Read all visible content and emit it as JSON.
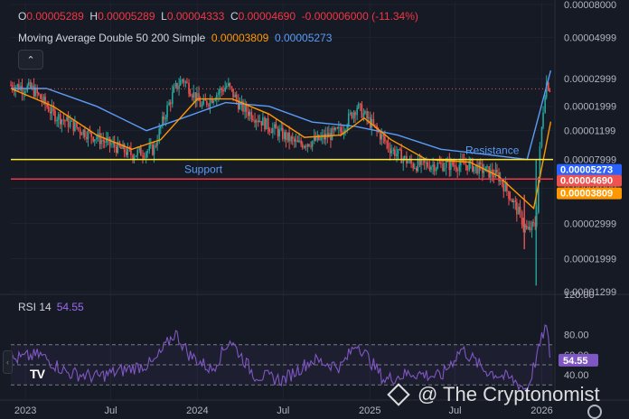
{
  "ohlc": {
    "o_label": "O",
    "o_value": "0.00005289",
    "h_label": "H",
    "h_value": "0.00005289",
    "l_label": "L",
    "l_value": "0.00004333",
    "c_label": "C",
    "c_value": "0.00004690",
    "change": "-0.000006000 (-11.34%)"
  },
  "ma_legend": {
    "title": "Moving Average Double 50 200 Simple",
    "fast": "0.00003809",
    "slow": "0.00005273"
  },
  "rsi_legend": {
    "title": "RSI 14",
    "value": "54.55"
  },
  "watermark": "@ The Cryptonomist",
  "colors": {
    "up": "#26a69a",
    "down": "#ef5350",
    "ma_fast": "#ff9800",
    "ma_slow": "#5b9cf6",
    "rsi": "#7e57c2",
    "resistance": "#ffeb3b",
    "support": "#f23645",
    "price": "#ef5350"
  },
  "icons": {
    "collapse": "chevron-up-icon",
    "logo": "tradingview-logo",
    "settings": "gear-icon",
    "watermark": "binance-diamond-icon"
  },
  "chart_data": {
    "type": "candlestick",
    "price_scale": "log",
    "ylim": [
      1.299e-05,
      8e-05
    ],
    "price_axis_labels": [
      "0.00008000",
      "0.00004999",
      "0.00002999",
      "0.00001999",
      "0.00001199",
      "0.00007999",
      "0.00004999",
      "0.00002999",
      "0.00001999",
      "0.00001299"
    ],
    "price_ticks": [
      8e-05,
      6.5e-05,
      5e-05,
      4.2e-05,
      3.6e-05,
      3e-05,
      2.5e-05,
      2e-05,
      1.6e-05,
      1.3e-05
    ],
    "x_labels": [
      "2023",
      "Jul",
      "2024",
      "Jul",
      "2025",
      "Jul",
      "2026"
    ],
    "x_label_dates": [
      "2023-01-01",
      "2023-07-01",
      "2024-01-01",
      "2024-07-01",
      "2025-01-01",
      "2025-07-01",
      "2026-01-01"
    ],
    "x_range": [
      "2022-12-01",
      "2026-01-25"
    ],
    "price_path": [
      [
        "2022-12-01",
        4.8e-05
      ],
      [
        "2023-01-15",
        4.7e-05
      ],
      [
        "2023-03-01",
        4e-05
      ],
      [
        "2023-05-01",
        3.6e-05
      ],
      [
        "2023-07-01",
        3.3e-05
      ],
      [
        "2023-08-15",
        3.1e-05
      ],
      [
        "2023-10-01",
        3.2e-05
      ],
      [
        "2023-11-15",
        4.7e-05
      ],
      [
        "2023-12-01",
        5e-05
      ],
      [
        "2024-01-10",
        4.2e-05
      ],
      [
        "2024-03-05",
        4.8e-05
      ],
      [
        "2024-04-01",
        4.2e-05
      ],
      [
        "2024-06-01",
        3.7e-05
      ],
      [
        "2024-08-01",
        3.3e-05
      ],
      [
        "2024-09-15",
        3.4e-05
      ],
      [
        "2024-11-01",
        3.6e-05
      ],
      [
        "2024-12-05",
        4.2e-05
      ],
      [
        "2025-01-01",
        3.8e-05
      ],
      [
        "2025-02-15",
        3.2e-05
      ],
      [
        "2025-04-01",
        2.9e-05
      ],
      [
        "2025-06-01",
        2.9e-05
      ],
      [
        "2025-08-01",
        2.9e-05
      ],
      [
        "2025-10-01",
        2.7e-05
      ],
      [
        "2025-11-01",
        2.3e-05
      ],
      [
        "2025-12-01",
        1.9e-05
      ],
      [
        "2025-12-20",
        2e-05
      ],
      [
        "2026-01-10",
        4.9e-05
      ],
      [
        "2026-01-20",
        4.69e-05
      ]
    ],
    "ma_fast_path": [
      [
        "2022-12-01",
        4.7e-05
      ],
      [
        "2023-03-01",
        4.2e-05
      ],
      [
        "2023-06-01",
        3.5e-05
      ],
      [
        "2023-08-15",
        3.2e-05
      ],
      [
        "2023-10-15",
        3.4e-05
      ],
      [
        "2024-01-01",
        4.4e-05
      ],
      [
        "2024-03-15",
        4.4e-05
      ],
      [
        "2024-06-01",
        4e-05
      ],
      [
        "2024-08-15",
        3.45e-05
      ],
      [
        "2024-11-01",
        3.5e-05
      ],
      [
        "2024-12-20",
        3.9e-05
      ],
      [
        "2025-02-15",
        3.4e-05
      ],
      [
        "2025-05-01",
        3e-05
      ],
      [
        "2025-08-01",
        2.95e-05
      ],
      [
        "2025-10-01",
        2.7e-05
      ],
      [
        "2025-12-15",
        2.2e-05
      ],
      [
        "2026-01-20",
        3.81e-05
      ]
    ],
    "ma_slow_path": [
      [
        "2022-12-01",
        4.7e-05
      ],
      [
        "2023-02-15",
        4.7e-05
      ],
      [
        "2023-06-01",
        4.2e-05
      ],
      [
        "2023-09-15",
        3.6e-05
      ],
      [
        "2023-12-01",
        3.9e-05
      ],
      [
        "2024-03-01",
        4.3e-05
      ],
      [
        "2024-06-01",
        4.2e-05
      ],
      [
        "2024-09-01",
        3.8e-05
      ],
      [
        "2024-12-01",
        3.7e-05
      ],
      [
        "2025-03-01",
        3.5e-05
      ],
      [
        "2025-06-01",
        3.2e-05
      ],
      [
        "2025-09-01",
        3.1e-05
      ],
      [
        "2025-12-01",
        3e-05
      ],
      [
        "2026-01-20",
        5.27e-05
      ]
    ],
    "resistance": {
      "label": "Resistance",
      "price": 3e-05
    },
    "support": {
      "label": "Support",
      "price": 2.65e-05
    },
    "current_price": 4.69e-05,
    "price_tags": [
      {
        "value": "0.00005273",
        "color": "#2962ff"
      },
      {
        "value": "0.00004690",
        "color": "#ef5350"
      },
      {
        "value": "0.00003809",
        "color": "#ff9800"
      }
    ],
    "rsi": {
      "ylim": [
        15,
        120
      ],
      "ticks": [
        120,
        80,
        60,
        40
      ],
      "tick_labels": [
        "120.00",
        "80.00",
        "60.00",
        "40.00"
      ],
      "upper": 70,
      "middle": 50,
      "lower": 30,
      "path": [
        [
          "2022-12-01",
          55
        ],
        [
          "2023-02-01",
          60
        ],
        [
          "2023-04-01",
          42
        ],
        [
          "2023-06-01",
          38
        ],
        [
          "2023-08-01",
          45
        ],
        [
          "2023-10-01",
          52
        ],
        [
          "2023-11-15",
          82
        ],
        [
          "2023-12-15",
          60
        ],
        [
          "2024-02-01",
          45
        ],
        [
          "2024-03-10",
          75
        ],
        [
          "2024-05-01",
          40
        ],
        [
          "2024-07-01",
          35
        ],
        [
          "2024-09-01",
          55
        ],
        [
          "2024-11-01",
          48
        ],
        [
          "2024-12-05",
          72
        ],
        [
          "2025-02-01",
          35
        ],
        [
          "2025-04-01",
          42
        ],
        [
          "2025-06-01",
          38
        ],
        [
          "2025-07-15",
          66
        ],
        [
          "2025-09-01",
          45
        ],
        [
          "2025-11-01",
          35
        ],
        [
          "2025-12-01",
          25
        ],
        [
          "2026-01-10",
          90
        ],
        [
          "2026-01-20",
          55
        ]
      ],
      "value_tag": "54.55"
    }
  }
}
